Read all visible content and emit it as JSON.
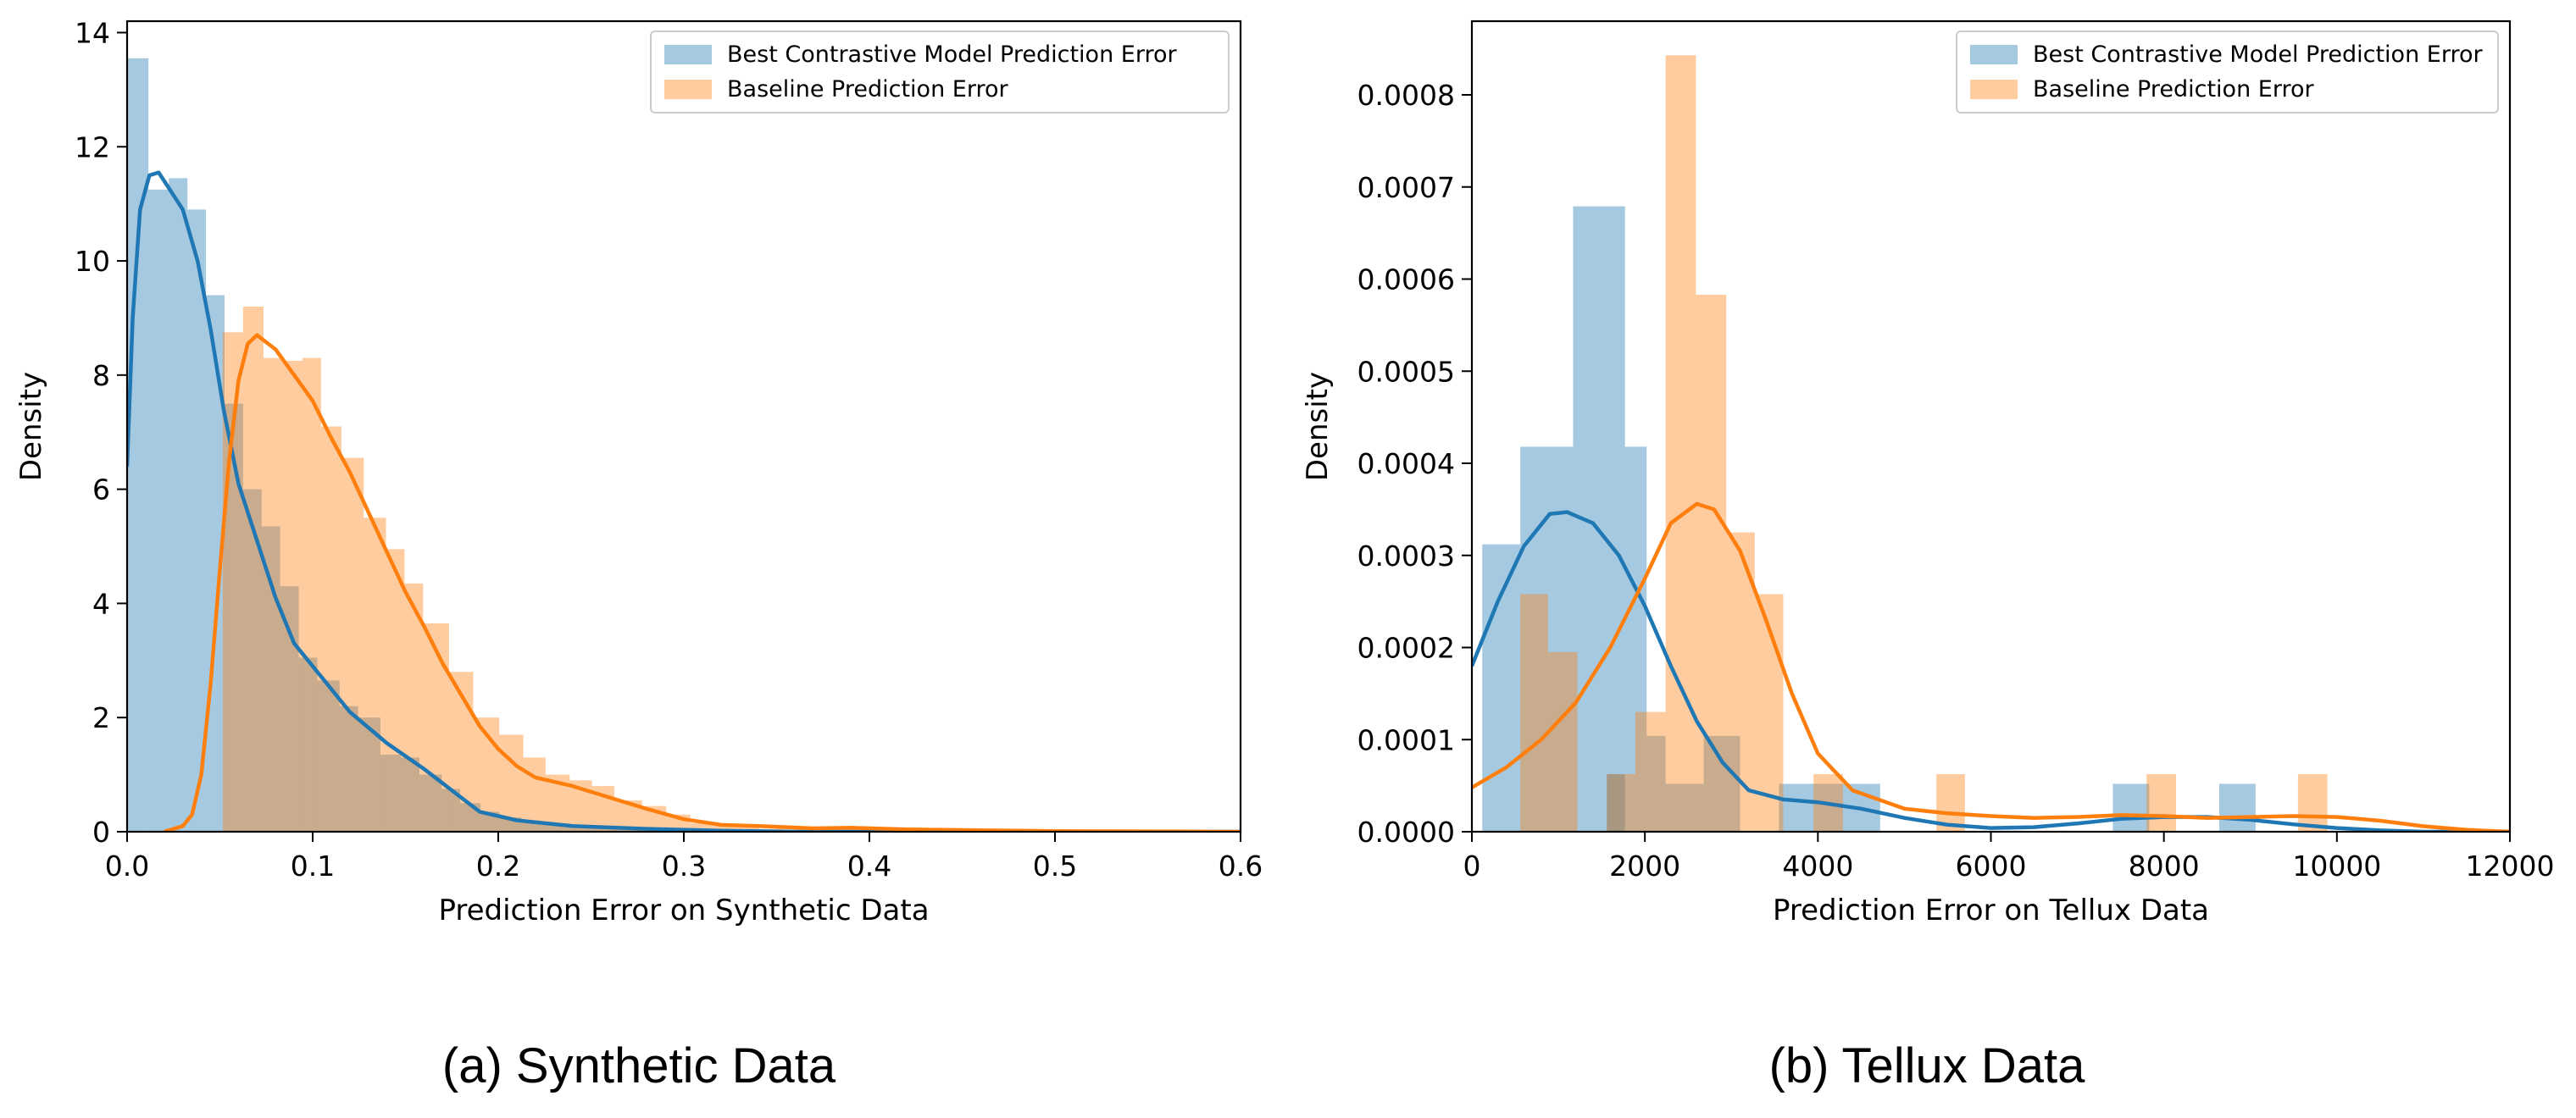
{
  "captions": {
    "a": "(a) Synthetic Data",
    "b": "(b) Tellux Data"
  },
  "chart_data": [
    {
      "type": "histogram_kde",
      "title": "",
      "xlabel": "Prediction Error on Synthetic Data",
      "ylabel": "Density",
      "xlim": [
        0,
        0.6
      ],
      "ylim": [
        0,
        14.2
      ],
      "xticks": [
        0,
        0.1,
        0.2,
        0.3,
        0.4,
        0.5,
        0.6
      ],
      "xtick_labels": [
        "0.0",
        "0.1",
        "0.2",
        "0.3",
        "0.4",
        "0.5",
        "0.6"
      ],
      "yticks": [
        0,
        2,
        4,
        6,
        8,
        10,
        12,
        14
      ],
      "ytick_labels": [
        "0",
        "2",
        "4",
        "6",
        "8",
        "10",
        "12",
        "14"
      ],
      "legend_position": "top-right",
      "series": [
        {
          "name": "Best Contrastive Model Prediction Error",
          "color": "#1f77b4",
          "bins": [
            [
              0.0,
              0.0115,
              13.55
            ],
            [
              0.0115,
              0.0225,
              11.25
            ],
            [
              0.0225,
              0.0325,
              11.45
            ],
            [
              0.0325,
              0.0425,
              10.9
            ],
            [
              0.0425,
              0.0525,
              9.4
            ],
            [
              0.0525,
              0.0625,
              7.5
            ],
            [
              0.0625,
              0.0725,
              6.0
            ],
            [
              0.0725,
              0.0825,
              5.35
            ],
            [
              0.0825,
              0.0925,
              4.3
            ],
            [
              0.0925,
              0.1025,
              3.05
            ],
            [
              0.1025,
              0.1145,
              2.65
            ],
            [
              0.1145,
              0.1245,
              2.2
            ],
            [
              0.1245,
              0.1365,
              2.0
            ],
            [
              0.1365,
              0.1475,
              1.35
            ],
            [
              0.1475,
              0.1575,
              1.3
            ],
            [
              0.1575,
              0.1695,
              1.0
            ],
            [
              0.1695,
              0.1795,
              0.75
            ],
            [
              0.1795,
              0.1905,
              0.5
            ],
            [
              0.1905,
              0.2005,
              0.35
            ],
            [
              0.2005,
              0.2125,
              0.25
            ],
            [
              0.2125,
              0.2225,
              0.2
            ],
            [
              0.2225,
              0.2345,
              0.15
            ],
            [
              0.2345,
              0.2455,
              0.1
            ],
            [
              0.2455,
              0.2555,
              0.07
            ],
            [
              0.2555,
              0.2675,
              0.05
            ],
            [
              0.2675,
              0.2775,
              0.03
            ]
          ],
          "kde": [
            [
              0.0,
              6.4
            ],
            [
              0.003,
              9.0
            ],
            [
              0.007,
              10.9
            ],
            [
              0.012,
              11.5
            ],
            [
              0.017,
              11.55
            ],
            [
              0.022,
              11.3
            ],
            [
              0.03,
              10.9
            ],
            [
              0.038,
              10.0
            ],
            [
              0.045,
              8.8
            ],
            [
              0.052,
              7.4
            ],
            [
              0.06,
              6.1
            ],
            [
              0.068,
              5.3
            ],
            [
              0.08,
              4.1
            ],
            [
              0.09,
              3.3
            ],
            [
              0.1,
              2.9
            ],
            [
              0.12,
              2.1
            ],
            [
              0.14,
              1.55
            ],
            [
              0.16,
              1.1
            ],
            [
              0.17,
              0.85
            ],
            [
              0.18,
              0.6
            ],
            [
              0.19,
              0.35
            ],
            [
              0.21,
              0.2
            ],
            [
              0.24,
              0.1
            ],
            [
              0.28,
              0.05
            ],
            [
              0.32,
              0.02
            ],
            [
              0.36,
              0.0
            ],
            [
              0.6,
              0.0
            ]
          ]
        },
        {
          "name": "Baseline Prediction Error",
          "color": "#ff7f0e",
          "bins": [
            [
              0.0515,
              0.0625,
              8.75
            ],
            [
              0.0625,
              0.0735,
              9.2
            ],
            [
              0.0735,
              0.0835,
              8.3
            ],
            [
              0.0835,
              0.0945,
              8.25
            ],
            [
              0.0945,
              0.1045,
              8.3
            ],
            [
              0.1045,
              0.1155,
              7.1
            ],
            [
              0.1155,
              0.1275,
              6.55
            ],
            [
              0.1275,
              0.1395,
              5.5
            ],
            [
              0.1395,
              0.1495,
              4.95
            ],
            [
              0.1495,
              0.1595,
              4.35
            ],
            [
              0.1595,
              0.1735,
              3.65
            ],
            [
              0.1735,
              0.1865,
              2.8
            ],
            [
              0.1865,
              0.2005,
              2.0
            ],
            [
              0.2005,
              0.2135,
              1.7
            ],
            [
              0.2135,
              0.2255,
              1.3
            ],
            [
              0.2255,
              0.2385,
              1.0
            ],
            [
              0.2385,
              0.2505,
              0.9
            ],
            [
              0.2505,
              0.2625,
              0.8
            ],
            [
              0.2625,
              0.2775,
              0.55
            ],
            [
              0.2775,
              0.2905,
              0.45
            ],
            [
              0.2905,
              0.3035,
              0.3
            ],
            [
              0.3035,
              0.3155,
              0.15
            ],
            [
              0.3155,
              0.3275,
              0.1
            ],
            [
              0.3275,
              0.3405,
              0.08
            ],
            [
              0.3405,
              0.3535,
              0.05
            ],
            [
              0.3535,
              0.3655,
              0.04
            ],
            [
              0.3655,
              0.3785,
              0.03
            ],
            [
              0.3785,
              0.3905,
              0.04
            ],
            [
              0.3905,
              0.4015,
              0.03
            ]
          ],
          "kde": [
            [
              0.02,
              0.0
            ],
            [
              0.03,
              0.1
            ],
            [
              0.035,
              0.3
            ],
            [
              0.04,
              1.0
            ],
            [
              0.045,
              2.6
            ],
            [
              0.05,
              4.6
            ],
            [
              0.055,
              6.5
            ],
            [
              0.06,
              7.9
            ],
            [
              0.065,
              8.55
            ],
            [
              0.07,
              8.7
            ],
            [
              0.08,
              8.45
            ],
            [
              0.09,
              8.0
            ],
            [
              0.1,
              7.55
            ],
            [
              0.11,
              6.9
            ],
            [
              0.12,
              6.3
            ],
            [
              0.13,
              5.6
            ],
            [
              0.14,
              4.9
            ],
            [
              0.15,
              4.2
            ],
            [
              0.16,
              3.6
            ],
            [
              0.17,
              2.95
            ],
            [
              0.18,
              2.4
            ],
            [
              0.19,
              1.85
            ],
            [
              0.2,
              1.45
            ],
            [
              0.21,
              1.15
            ],
            [
              0.22,
              0.95
            ],
            [
              0.24,
              0.8
            ],
            [
              0.26,
              0.6
            ],
            [
              0.28,
              0.4
            ],
            [
              0.3,
              0.22
            ],
            [
              0.32,
              0.12
            ],
            [
              0.34,
              0.1
            ],
            [
              0.37,
              0.06
            ],
            [
              0.39,
              0.07
            ],
            [
              0.42,
              0.04
            ],
            [
              0.45,
              0.03
            ],
            [
              0.5,
              0.01
            ],
            [
              0.6,
              0.0
            ]
          ]
        }
      ]
    },
    {
      "type": "histogram_kde",
      "title": "",
      "xlabel": "Prediction Error on Tellux Data",
      "ylabel": "Density",
      "xlim": [
        0,
        12000
      ],
      "ylim": [
        0,
        0.00088
      ],
      "xticks": [
        0,
        2000,
        4000,
        6000,
        8000,
        10000,
        12000
      ],
      "xtick_labels": [
        "0",
        "2000",
        "4000",
        "6000",
        "8000",
        "10000",
        "12000"
      ],
      "yticks": [
        0,
        0.0001,
        0.0002,
        0.0003,
        0.0004,
        0.0005,
        0.0006,
        0.0007,
        0.0008
      ],
      "ytick_labels": [
        "0.0000",
        "0.0001",
        "0.0002",
        "0.0003",
        "0.0004",
        "0.0005",
        "0.0006",
        "0.0007",
        "0.0008"
      ],
      "legend_position": "top-right",
      "series": [
        {
          "name": "Best Contrastive Model Prediction Error",
          "color": "#1f77b4",
          "bins": [
            [
              120,
              560,
              0.000312
            ],
            [
              560,
              1170,
              0.000418
            ],
            [
              1170,
              1770,
              0.000679
            ],
            [
              1770,
              2020,
              0.000418
            ],
            [
              1560,
              1770,
              6.25e-05
            ],
            [
              2020,
              2240,
              0.000104
            ],
            [
              2240,
              2680,
              5.2e-05
            ],
            [
              2680,
              3100,
              0.000104
            ],
            [
              3550,
              3960,
              5.2e-05
            ],
            [
              3960,
              4720,
              5.2e-05
            ],
            [
              7410,
              7830,
              5.2e-05
            ],
            [
              8640,
              9060,
              5.2e-05
            ]
          ],
          "kde": [
            [
              0,
              0.00018
            ],
            [
              300,
              0.00025
            ],
            [
              600,
              0.00031
            ],
            [
              900,
              0.000345
            ],
            [
              1100,
              0.000347
            ],
            [
              1400,
              0.000335
            ],
            [
              1700,
              0.0003
            ],
            [
              2000,
              0.000245
            ],
            [
              2300,
              0.00018
            ],
            [
              2600,
              0.00012
            ],
            [
              2900,
              7.5e-05
            ],
            [
              3200,
              4.5e-05
            ],
            [
              3600,
              3.5e-05
            ],
            [
              4000,
              3.2e-05
            ],
            [
              4500,
              2.5e-05
            ],
            [
              5000,
              1.5e-05
            ],
            [
              5500,
              7.5e-06
            ],
            [
              6000,
              4e-06
            ],
            [
              6500,
              5e-06
            ],
            [
              7000,
              9e-06
            ],
            [
              7500,
              1.4e-05
            ],
            [
              8000,
              1.6e-05
            ],
            [
              8500,
              1.6e-05
            ],
            [
              9000,
              1.3e-05
            ],
            [
              9500,
              8e-06
            ],
            [
              10000,
              4e-06
            ],
            [
              10500,
              1.5e-06
            ],
            [
              11000,
              0.0
            ],
            [
              12000,
              0.0
            ]
          ]
        },
        {
          "name": "Baseline Prediction Error",
          "color": "#ff7f0e",
          "bins": [
            [
              560,
              880,
              0.000258
            ],
            [
              880,
              1220,
              0.000195
            ],
            [
              1560,
              1890,
              6.25e-05
            ],
            [
              1890,
              2240,
              0.00013
            ],
            [
              2240,
              2590,
              0.000843
            ],
            [
              2590,
              2940,
              0.000583
            ],
            [
              2940,
              3270,
              0.000325
            ],
            [
              3270,
              3600,
              0.000258
            ],
            [
              3950,
              4290,
              6.25e-05
            ],
            [
              5370,
              5700,
              6.25e-05
            ],
            [
              7800,
              8140,
              6.25e-05
            ],
            [
              9550,
              9890,
              6.25e-05
            ]
          ],
          "kde": [
            [
              0,
              4.8e-05
            ],
            [
              400,
              7e-05
            ],
            [
              800,
              0.0001
            ],
            [
              1200,
              0.00014
            ],
            [
              1600,
              0.0002
            ],
            [
              2000,
              0.000275
            ],
            [
              2300,
              0.000335
            ],
            [
              2600,
              0.000356
            ],
            [
              2800,
              0.00035
            ],
            [
              3100,
              0.000305
            ],
            [
              3400,
              0.00023
            ],
            [
              3700,
              0.00015
            ],
            [
              4000,
              8.5e-05
            ],
            [
              4400,
              4.5e-05
            ],
            [
              5000,
              2.5e-05
            ],
            [
              5500,
              2e-05
            ],
            [
              6000,
              1.7e-05
            ],
            [
              6500,
              1.5e-05
            ],
            [
              7000,
              1.6e-05
            ],
            [
              7500,
              1.8e-05
            ],
            [
              8000,
              1.7e-05
            ],
            [
              8500,
              1.5e-05
            ],
            [
              9000,
              1.6e-05
            ],
            [
              9500,
              1.7e-05
            ],
            [
              10000,
              1.6e-05
            ],
            [
              10500,
              1.2e-05
            ],
            [
              11000,
              6e-06
            ],
            [
              11500,
              2e-06
            ],
            [
              12000,
              0.0
            ]
          ]
        }
      ]
    }
  ]
}
